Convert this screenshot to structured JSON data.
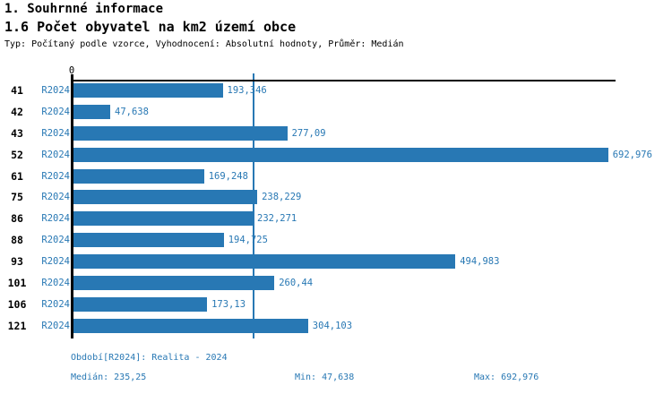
{
  "header": {
    "section_title": "1. Souhrnné informace",
    "chart_title": "1.6 Počet obyvatel na km2 území obce",
    "meta": "Typ: Počítaný podle vzorce, Vyhodnocení: Absolutní hodnoty, Průměr: Medián"
  },
  "chart_data": {
    "type": "bar",
    "orientation": "horizontal",
    "title": "1.6 Počet obyvatel na km2 území obce",
    "categories": [
      "41",
      "42",
      "43",
      "52",
      "61",
      "75",
      "86",
      "88",
      "93",
      "101",
      "106",
      "121"
    ],
    "series": [
      {
        "name": "R2024",
        "values": [
          193.346,
          47.638,
          277.09,
          692.976,
          169.248,
          238.229,
          232.271,
          194.725,
          494.983,
          260.44,
          173.13,
          304.103
        ],
        "value_labels": [
          "193,346",
          "47,638",
          "277,09",
          "692,976",
          "169,248",
          "238,229",
          "232,271",
          "194,725",
          "494,983",
          "260,44",
          "173,13",
          "304,103"
        ]
      }
    ],
    "axis": {
      "origin_label": "0",
      "xlim": [
        0,
        706
      ],
      "gridline_value": 235.25,
      "grid": "single-median-line"
    },
    "stats": {
      "median": 235.25,
      "min": 47.638,
      "max": 692.976
    },
    "legend_position": "none",
    "colors": {
      "bar": "#2878b4",
      "accent_text": "#2878b4",
      "axis": "#000000",
      "background": "#ffffff"
    }
  },
  "footer": {
    "period": "Období[R2024]: Realita - 2024",
    "median": "Medián: 235,25",
    "min": "Min: 47,638",
    "max": "Max: 692,976"
  }
}
